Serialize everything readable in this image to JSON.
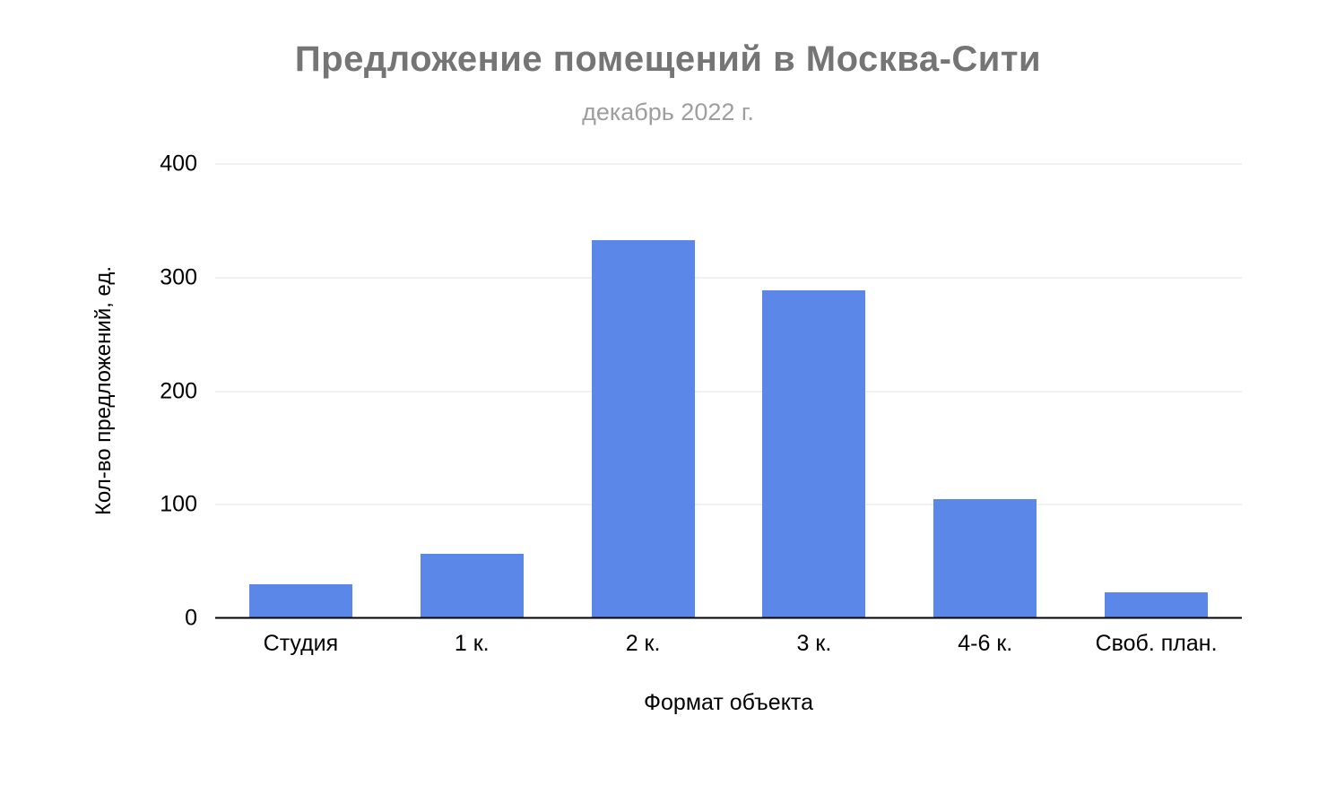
{
  "chart_data": {
    "type": "bar",
    "title": "Предложение помещений в Москва-Сити",
    "subtitle": "декабрь 2022 г.",
    "categories": [
      "Студия",
      "1 к.",
      "2 к.",
      "3 к.",
      "4-6 к.",
      "Своб. план."
    ],
    "values": [
      30,
      57,
      333,
      289,
      105,
      23
    ],
    "xlabel": "Формат объекта",
    "ylabel": "Кол-во предложений, ед.",
    "ylim": [
      0,
      400
    ],
    "yticks": [
      0,
      100,
      200,
      300,
      400
    ],
    "grid": "horizontal",
    "legend_position": "none",
    "bar_color": "#5b87e8",
    "title_color": "#757575",
    "subtitle_color": "#9e9e9e",
    "gridline_color": "#e3e3e3",
    "axis_line_color": "#000000"
  }
}
